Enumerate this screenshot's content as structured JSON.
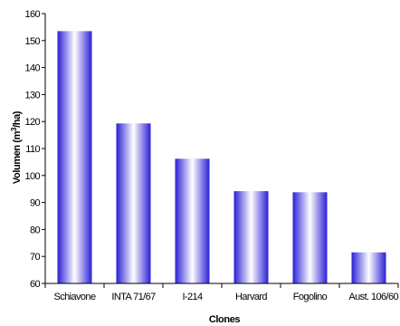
{
  "chart_data": {
    "type": "bar",
    "categories": [
      "Schiavone",
      "INTA 71/67",
      "I-214",
      "Harvard",
      "Fogolino",
      "Aust. 106/60"
    ],
    "values": [
      153.5,
      119.3,
      106.2,
      94.2,
      93.8,
      71.5
    ],
    "xlabel": "Clones",
    "ylabel_main": "Volumen (m",
    "ylabel_sup": "3",
    "ylabel_tail": "/ha)",
    "ylim": [
      60,
      160
    ],
    "yticks": [
      60,
      70,
      80,
      90,
      100,
      110,
      120,
      130,
      140,
      150,
      160
    ],
    "grid": false,
    "legend": "none",
    "bar_gradient": {
      "edge": "#2a1fd6",
      "center": "#ffffff"
    }
  }
}
